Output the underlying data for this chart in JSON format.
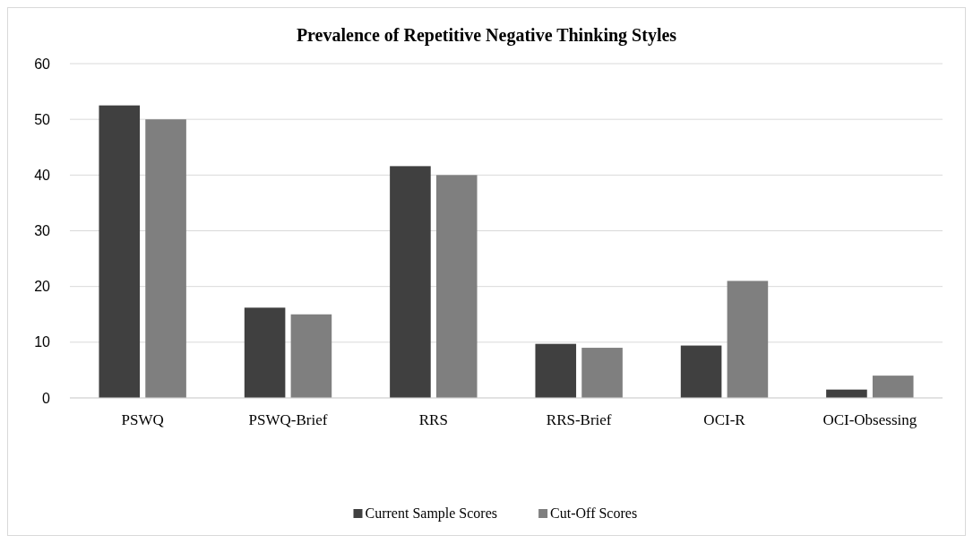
{
  "chart_data": {
    "type": "bar",
    "title": "Prevalence of Repetitive Negative Thinking Styles",
    "categories": [
      "PSWQ",
      "PSWQ-Brief",
      "RRS",
      "RRS-Brief",
      "OCI-R",
      "OCI-Obsessing"
    ],
    "series": [
      {
        "name": "Current Sample Scores",
        "color": "#404040",
        "values": [
          52.5,
          16.2,
          41.6,
          9.7,
          9.4,
          1.5
        ]
      },
      {
        "name": "Cut-Off Scores",
        "color": "#7f7f7f",
        "values": [
          50,
          15,
          40,
          9,
          21,
          4
        ]
      }
    ],
    "ylim": [
      0,
      60
    ],
    "yticks": [
      0,
      10,
      20,
      30,
      40,
      50,
      60
    ],
    "grid": "y",
    "legend": "bottom"
  }
}
